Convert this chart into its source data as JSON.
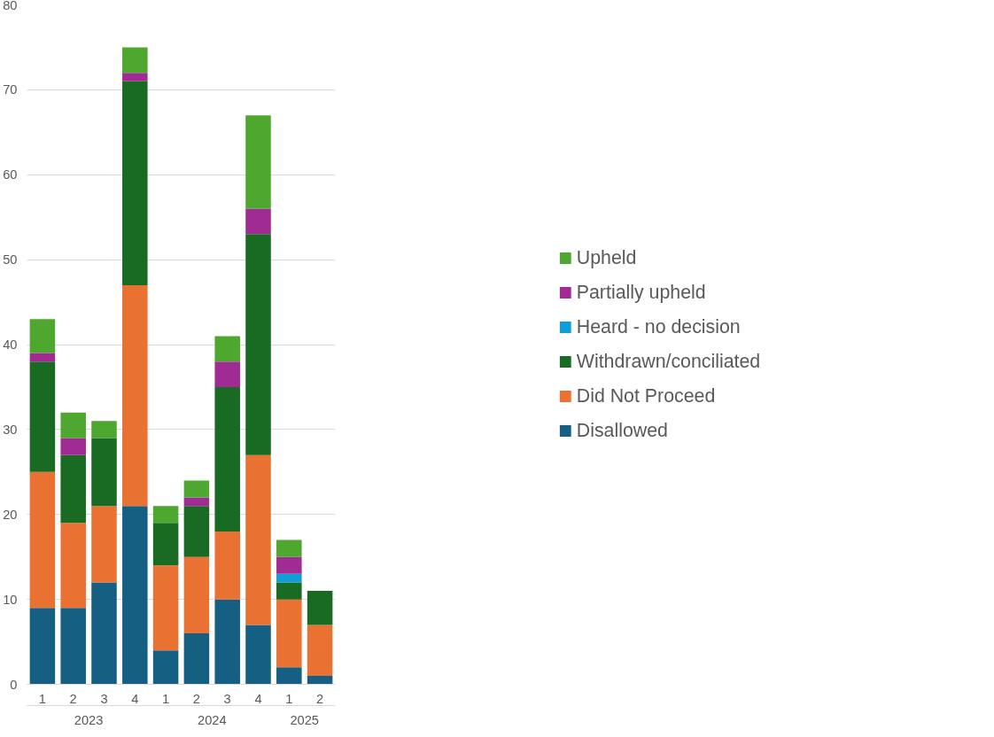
{
  "chart_data": {
    "type": "bar",
    "stacked": true,
    "categories": [
      "1",
      "2",
      "3",
      "4",
      "1",
      "2",
      "3",
      "4",
      "1",
      "2"
    ],
    "annotations": [
      "2023",
      "2024",
      "2025"
    ],
    "series": [
      {
        "name": "Disallowed",
        "color": "#156082",
        "values": [
          9,
          9,
          12,
          21,
          4,
          6,
          10,
          7,
          2,
          1
        ]
      },
      {
        "name": "Did Not Proceed",
        "color": "#e97132",
        "values": [
          16,
          10,
          9,
          26,
          10,
          9,
          8,
          20,
          8,
          6
        ]
      },
      {
        "name": "Withdrawn/conciliated",
        "color": "#196b24",
        "values": [
          13,
          8,
          8,
          24,
          5,
          6,
          17,
          26,
          2,
          4
        ]
      },
      {
        "name": "Heard - no decision",
        "color": "#0f9ed5",
        "values": [
          0,
          0,
          0,
          0,
          0,
          0,
          0,
          0,
          1,
          0
        ]
      },
      {
        "name": "Partially upheld",
        "color": "#a02b93",
        "values": [
          1,
          2,
          0,
          1,
          0,
          1,
          3,
          3,
          2,
          0
        ]
      },
      {
        "name": "Upheld",
        "color": "#4ea72e",
        "values": [
          4,
          3,
          2,
          3,
          2,
          2,
          3,
          11,
          2,
          0
        ]
      }
    ],
    "ylim": [
      0,
      80
    ],
    "yticks": [
      0,
      10,
      20,
      30,
      40,
      50,
      60,
      70,
      80
    ],
    "grid": "y",
    "legend": "right"
  }
}
